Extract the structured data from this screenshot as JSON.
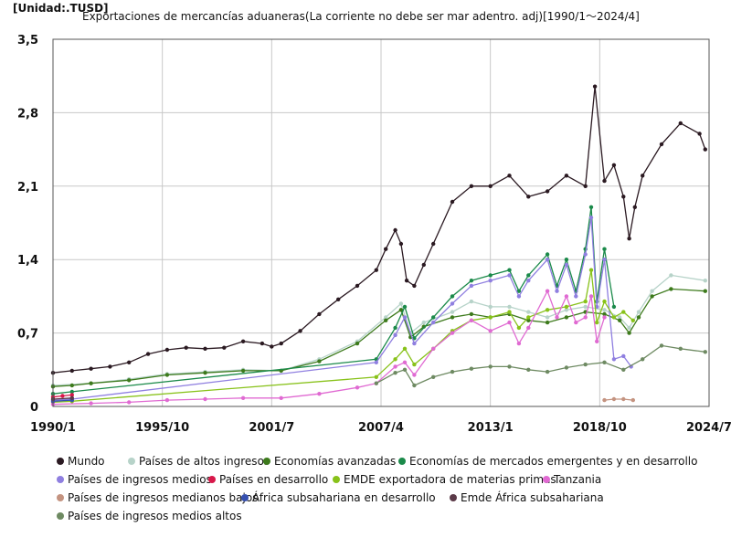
{
  "unit_label": "[Unidad:.TUSD]",
  "chart_data": {
    "type": "line",
    "title": "Exportaciones de mercancías aduaneras(La corriente no debe ser mar adentro. adj)[1990/1～2024/4]",
    "xlabel": "",
    "ylabel": "",
    "x_tick_labels": [
      "1990/1",
      "1995/10",
      "2001/7",
      "2007/4",
      "2013/1",
      "2018/10",
      "2024/7"
    ],
    "x_tick_values": [
      1990.0,
      1995.75,
      2001.5,
      2007.25,
      2013.0,
      2018.75,
      2024.5
    ],
    "xlim": [
      1990.0,
      2024.5
    ],
    "y_tick_labels": [
      "0",
      "0,7",
      "1,4",
      "2,1",
      "2,8",
      "3,5"
    ],
    "y_tick_values": [
      0,
      0.7,
      1.4,
      2.1,
      2.8,
      3.5
    ],
    "ylim": [
      0,
      3.5
    ],
    "grid": true,
    "legend_position": "bottom",
    "series": [
      {
        "name": "Mundo",
        "color": "#2b1a22",
        "x": [
          1990.0,
          1991.0,
          1992.0,
          1993.0,
          1994.0,
          1995.0,
          1996.0,
          1997.0,
          1998.0,
          1999.0,
          2000.0,
          2001.0,
          2001.5,
          2002.0,
          2003.0,
          2004.0,
          2005.0,
          2006.0,
          2007.0,
          2007.5,
          2008.0,
          2008.3,
          2008.6,
          2009.0,
          2009.5,
          2010.0,
          2011.0,
          2012.0,
          2013.0,
          2014.0,
          2015.0,
          2016.0,
          2017.0,
          2018.0,
          2018.5,
          2019.0,
          2019.5,
          2020.0,
          2020.3,
          2020.6,
          2021.0,
          2022.0,
          2023.0,
          2024.0,
          2024.3
        ],
        "y": [
          0.32,
          0.34,
          0.36,
          0.38,
          0.42,
          0.5,
          0.54,
          0.56,
          0.55,
          0.56,
          0.62,
          0.6,
          0.57,
          0.6,
          0.72,
          0.88,
          1.02,
          1.15,
          1.3,
          1.5,
          1.68,
          1.55,
          1.2,
          1.15,
          1.35,
          1.55,
          1.95,
          2.1,
          2.1,
          2.2,
          2.0,
          2.05,
          2.2,
          2.1,
          3.05,
          2.15,
          2.3,
          2.0,
          1.6,
          1.9,
          2.2,
          2.5,
          2.7,
          2.6,
          2.45
        ]
      },
      {
        "name": "Países de altos ingresos",
        "color": "#b7d3c9",
        "x": [
          1990.0,
          1992.0,
          1994.0,
          1996.0,
          1998.0,
          2000.0,
          2002.0,
          2004.0,
          2006.0,
          2007.5,
          2008.3,
          2008.8,
          2009.5,
          2011.0,
          2012.0,
          2013.0,
          2014.0,
          2015.0,
          2016.0,
          2017.0,
          2018.0,
          2019.0,
          2019.8,
          2020.3,
          2020.8,
          2021.5,
          2022.5,
          2024.3
        ],
        "y": [
          0.2,
          0.22,
          0.26,
          0.31,
          0.33,
          0.35,
          0.34,
          0.45,
          0.62,
          0.85,
          0.98,
          0.7,
          0.8,
          0.9,
          1.0,
          0.95,
          0.95,
          0.9,
          0.85,
          0.92,
          0.95,
          0.92,
          0.85,
          0.75,
          0.9,
          1.1,
          1.25,
          1.2
        ]
      },
      {
        "name": "Economías avanzadas",
        "color": "#3d7a1c",
        "x": [
          1990.0,
          1991.0,
          1992.0,
          1994.0,
          1996.0,
          1998.0,
          2000.0,
          2002.0,
          2004.0,
          2006.0,
          2007.5,
          2008.3,
          2008.8,
          2009.5,
          2011.0,
          2012.0,
          2013.0,
          2014.0,
          2015.0,
          2016.0,
          2017.0,
          2018.0,
          2019.0,
          2019.8,
          2020.3,
          2020.8,
          2021.5,
          2022.5,
          2024.3
        ],
        "y": [
          0.19,
          0.2,
          0.22,
          0.25,
          0.3,
          0.32,
          0.34,
          0.34,
          0.43,
          0.6,
          0.82,
          0.92,
          0.66,
          0.76,
          0.85,
          0.88,
          0.85,
          0.88,
          0.82,
          0.8,
          0.85,
          0.9,
          0.88,
          0.82,
          0.7,
          0.85,
          1.05,
          1.12,
          1.1
        ]
      },
      {
        "name": "Economías de mercados emergentes y en desarrollo",
        "color": "#1b8a4a",
        "x": [
          1990.0,
          1991.0,
          2007.0,
          2008.0,
          2008.5,
          2009.0,
          2010.0,
          2011.0,
          2012.0,
          2013.0,
          2014.0,
          2014.5,
          2015.0,
          2016.0,
          2016.5,
          2017.0,
          2017.5,
          2018.0,
          2018.3,
          2018.6,
          2019.0,
          2019.5
        ],
        "y": [
          0.12,
          0.14,
          0.45,
          0.75,
          0.95,
          0.65,
          0.85,
          1.05,
          1.2,
          1.25,
          1.3,
          1.1,
          1.25,
          1.45,
          1.15,
          1.4,
          1.1,
          1.5,
          1.9,
          1.0,
          1.5,
          0.95
        ]
      },
      {
        "name": "Países de ingresos medios",
        "color": "#8f7fe0",
        "x": [
          1990.0,
          1991.0,
          2007.0,
          2008.0,
          2008.5,
          2009.0,
          2010.0,
          2011.0,
          2012.0,
          2013.0,
          2014.0,
          2014.5,
          2015.0,
          2016.0,
          2016.5,
          2017.0,
          2017.5,
          2018.0,
          2018.3,
          2018.6,
          2019.0,
          2019.5,
          2020.0,
          2020.4
        ],
        "y": [
          0.06,
          0.07,
          0.42,
          0.68,
          0.85,
          0.6,
          0.8,
          0.98,
          1.15,
          1.2,
          1.25,
          1.05,
          1.2,
          1.4,
          1.1,
          1.35,
          1.05,
          1.45,
          1.8,
          0.95,
          1.4,
          0.45,
          0.48,
          0.38
        ]
      },
      {
        "name": "Países en desarrollo",
        "color": "#d8184a",
        "x": [
          1990.0,
          1990.5,
          1991.0
        ],
        "y": [
          0.09,
          0.1,
          0.11
        ]
      },
      {
        "name": "EMDE exportadora de materias primas",
        "color": "#88c21a",
        "x": [
          1990.0,
          1991.0,
          2007.0,
          2008.0,
          2008.5,
          2009.0,
          2010.0,
          2011.0,
          2012.0,
          2013.0,
          2014.0,
          2014.5,
          2015.0,
          2016.0,
          2017.0,
          2018.0,
          2018.3,
          2018.6,
          2019.0,
          2019.5,
          2020.0,
          2020.5
        ],
        "y": [
          0.04,
          0.05,
          0.28,
          0.45,
          0.55,
          0.4,
          0.55,
          0.72,
          0.82,
          0.85,
          0.9,
          0.75,
          0.85,
          0.92,
          0.95,
          1.0,
          1.3,
          0.8,
          1.0,
          0.85,
          0.9,
          0.82
        ]
      },
      {
        "name": "Tanzania",
        "color": "#e06ad2",
        "x": [
          1990.0,
          1992.0,
          1994.0,
          1996.0,
          1998.0,
          2000.0,
          2002.0,
          2004.0,
          2006.0,
          2007.0,
          2008.0,
          2008.5,
          2009.0,
          2010.0,
          2011.0,
          2012.0,
          2013.0,
          2014.0,
          2014.5,
          2015.0,
          2016.0,
          2016.5,
          2017.0,
          2017.5,
          2018.0,
          2018.3,
          2018.6,
          2019.0
        ],
        "y": [
          0.02,
          0.03,
          0.04,
          0.06,
          0.07,
          0.08,
          0.08,
          0.12,
          0.18,
          0.22,
          0.38,
          0.42,
          0.3,
          0.55,
          0.7,
          0.82,
          0.72,
          0.8,
          0.6,
          0.75,
          1.1,
          0.85,
          1.05,
          0.8,
          0.85,
          1.05,
          0.62,
          0.85
        ]
      },
      {
        "name": "Países de ingresos medianos bajos",
        "color": "#c49380",
        "x": [
          2019.0,
          2019.5,
          2020.0,
          2020.5
        ],
        "y": [
          0.06,
          0.07,
          0.07,
          0.06
        ]
      },
      {
        "name": "África subsahariana en desarrollo",
        "color": "#3650b0",
        "x": [
          1990.0,
          1991.0
        ],
        "y": [
          0.05,
          0.06
        ]
      },
      {
        "name": "Emde África subsahariana",
        "color": "#5b3a48",
        "x": [
          1990.0,
          1991.0
        ],
        "y": [
          0.07,
          0.08
        ]
      },
      {
        "name": "Países de ingresos medios altos",
        "color": "#6e8a62",
        "x": [
          2007.0,
          2008.0,
          2008.5,
          2009.0,
          2010.0,
          2011.0,
          2012.0,
          2013.0,
          2014.0,
          2015.0,
          2016.0,
          2017.0,
          2018.0,
          2019.0,
          2020.0,
          2021.0,
          2022.0,
          2023.0,
          2024.3
        ],
        "y": [
          0.22,
          0.32,
          0.35,
          0.2,
          0.28,
          0.33,
          0.36,
          0.38,
          0.38,
          0.35,
          0.33,
          0.37,
          0.4,
          0.42,
          0.35,
          0.45,
          0.58,
          0.55,
          0.52
        ]
      }
    ]
  }
}
